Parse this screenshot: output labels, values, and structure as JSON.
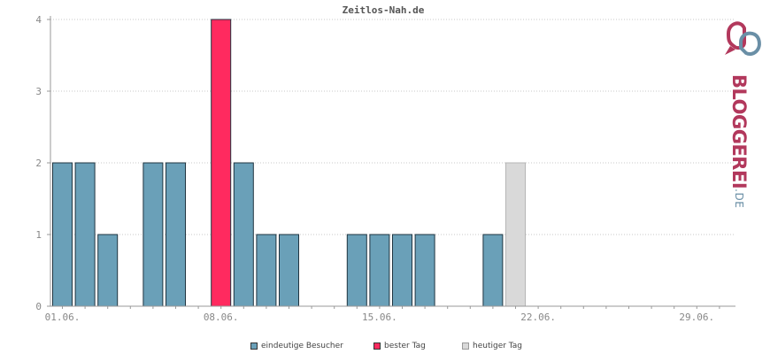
{
  "chart_data": {
    "type": "bar",
    "title": "Zeitlos-Nah.de",
    "ylim": [
      0,
      4
    ],
    "y_ticks": [
      0,
      1,
      2,
      3,
      4
    ],
    "grid": true,
    "legend_position": "bottom",
    "x_tick_labels": [
      {
        "day": 1,
        "label": "01.06."
      },
      {
        "day": 8,
        "label": "08.06."
      },
      {
        "day": 15,
        "label": "15.06."
      },
      {
        "day": 22,
        "label": "22.06."
      },
      {
        "day": 29,
        "label": "29.06."
      }
    ],
    "days_in_month": 30,
    "bars": [
      {
        "day": 1,
        "value": 2,
        "kind": "visitors"
      },
      {
        "day": 2,
        "value": 2,
        "kind": "visitors"
      },
      {
        "day": 3,
        "value": 1,
        "kind": "visitors"
      },
      {
        "day": 5,
        "value": 2,
        "kind": "visitors"
      },
      {
        "day": 6,
        "value": 2,
        "kind": "visitors"
      },
      {
        "day": 8,
        "value": 4,
        "kind": "best"
      },
      {
        "day": 9,
        "value": 2,
        "kind": "visitors"
      },
      {
        "day": 10,
        "value": 1,
        "kind": "visitors"
      },
      {
        "day": 11,
        "value": 1,
        "kind": "visitors"
      },
      {
        "day": 14,
        "value": 1,
        "kind": "visitors"
      },
      {
        "day": 15,
        "value": 1,
        "kind": "visitors"
      },
      {
        "day": 16,
        "value": 1,
        "kind": "visitors"
      },
      {
        "day": 17,
        "value": 1,
        "kind": "visitors"
      },
      {
        "day": 20,
        "value": 1,
        "kind": "visitors"
      },
      {
        "day": 21,
        "value": 2,
        "kind": "today"
      }
    ],
    "colors": {
      "visitors": "#6aa0b8",
      "best": "#ff2a5f",
      "today": "#d9d9d9",
      "grid": "#c8c8c8",
      "axis": "#999999"
    },
    "legend": [
      {
        "kind": "visitors",
        "label": "eindeutige Besucher"
      },
      {
        "kind": "best",
        "label": "bester Tag"
      },
      {
        "kind": "today",
        "label": "heutiger Tag"
      }
    ]
  },
  "logo": {
    "brand": "BLOGGEREI",
    "tld": ".DE",
    "icon": "bloggerei-logo-icon"
  }
}
